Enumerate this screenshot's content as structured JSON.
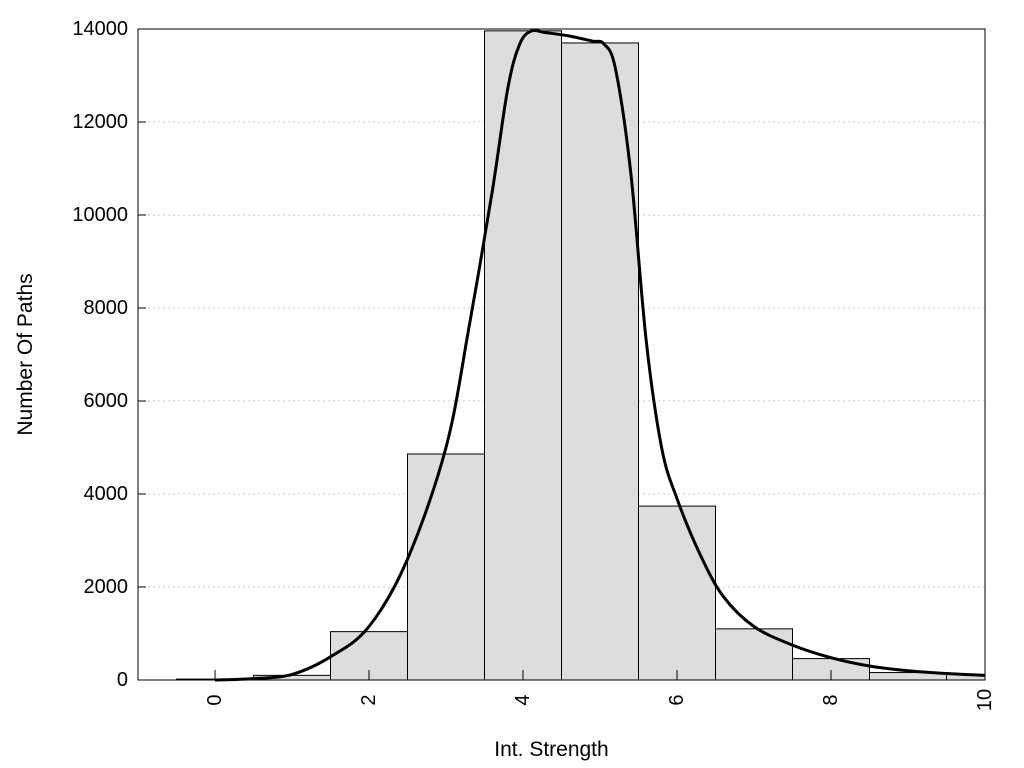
{
  "chart_data": {
    "type": "bar",
    "title": "",
    "xlabel": "Int. Strength",
    "ylabel": "Number Of Paths",
    "xlim": [
      -1,
      10
    ],
    "ylim": [
      0,
      14000
    ],
    "x_ticks": [
      0,
      2,
      4,
      6,
      8,
      10
    ],
    "y_ticks": [
      0,
      2000,
      4000,
      6000,
      8000,
      10000,
      12000,
      14000
    ],
    "grid": "horizontal dotted",
    "bar_fill": "#dddddd",
    "bar_stroke": "#000000",
    "line_color": "#000000",
    "bins": [
      {
        "start": -0.5,
        "end": 0.5,
        "value": 20
      },
      {
        "start": 0.5,
        "end": 1.5,
        "value": 100
      },
      {
        "start": 1.5,
        "end": 2.5,
        "value": 1040
      },
      {
        "start": 2.5,
        "end": 3.5,
        "value": 4860
      },
      {
        "start": 3.5,
        "end": 4.5,
        "value": 13960
      },
      {
        "start": 4.5,
        "end": 5.5,
        "value": 13700
      },
      {
        "start": 5.5,
        "end": 6.5,
        "value": 3740
      },
      {
        "start": 6.5,
        "end": 7.5,
        "value": 1100
      },
      {
        "start": 7.5,
        "end": 8.5,
        "value": 460
      },
      {
        "start": 8.5,
        "end": 9.5,
        "value": 160
      },
      {
        "start": 9.5,
        "end": 10.5,
        "value": 120
      }
    ],
    "curve": {
      "x": [
        0,
        0.5,
        1.0,
        1.5,
        2.0,
        2.5,
        3.0,
        3.3,
        3.6,
        3.8,
        3.95,
        4.1,
        4.3,
        4.6,
        4.9,
        5.05,
        5.2,
        5.4,
        5.6,
        5.8,
        6.0,
        6.3,
        6.6,
        7.0,
        7.5,
        8.0,
        8.5,
        9.0,
        9.5,
        10.0
      ],
      "y": [
        0,
        30,
        120,
        500,
        1150,
        2600,
        5000,
        7600,
        10500,
        12700,
        13650,
        13950,
        13920,
        13850,
        13740,
        13680,
        13150,
        10900,
        7300,
        5000,
        3900,
        2700,
        1800,
        1150,
        750,
        480,
        300,
        200,
        140,
        100
      ]
    }
  }
}
